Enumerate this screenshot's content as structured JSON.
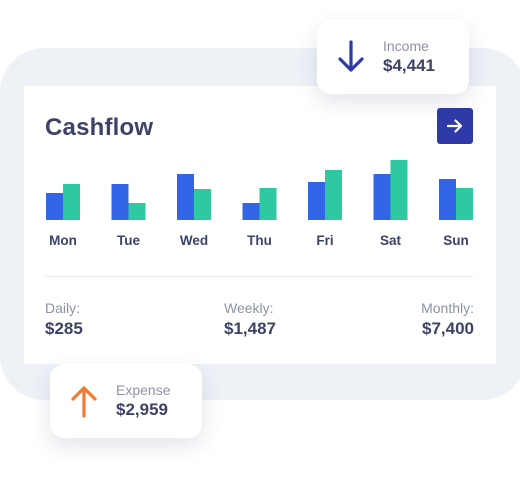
{
  "income": {
    "label": "Income",
    "value": "$4,441",
    "icon": "arrow-down-icon",
    "color": "#2d3aa8"
  },
  "expense": {
    "label": "Expense",
    "value": "$2,959",
    "icon": "arrow-up-icon",
    "color": "#f07a32"
  },
  "card": {
    "title": "Cashflow",
    "action_icon": "arrow-right-icon"
  },
  "colors": {
    "series_a": "#3366e6",
    "series_b": "#2ec9a0",
    "accent": "#2d3aa8",
    "text": "#3d4366"
  },
  "chart_data": {
    "type": "bar",
    "categories": [
      "Mon",
      "Tue",
      "Wed",
      "Thu",
      "Fri",
      "Sat",
      "Sun"
    ],
    "series": [
      {
        "values": [
          27,
          36,
          46,
          17,
          38,
          46,
          41
        ]
      },
      {
        "values": [
          36,
          17,
          31,
          32,
          50,
          60,
          32
        ]
      }
    ],
    "ylim": [
      0,
      60
    ],
    "grid": false
  },
  "stats": {
    "daily": {
      "label": "Daily:",
      "value": "$285"
    },
    "weekly": {
      "label": "Weekly:",
      "value": "$1,487"
    },
    "monthly": {
      "label": "Monthly:",
      "value": "$7,400"
    }
  }
}
